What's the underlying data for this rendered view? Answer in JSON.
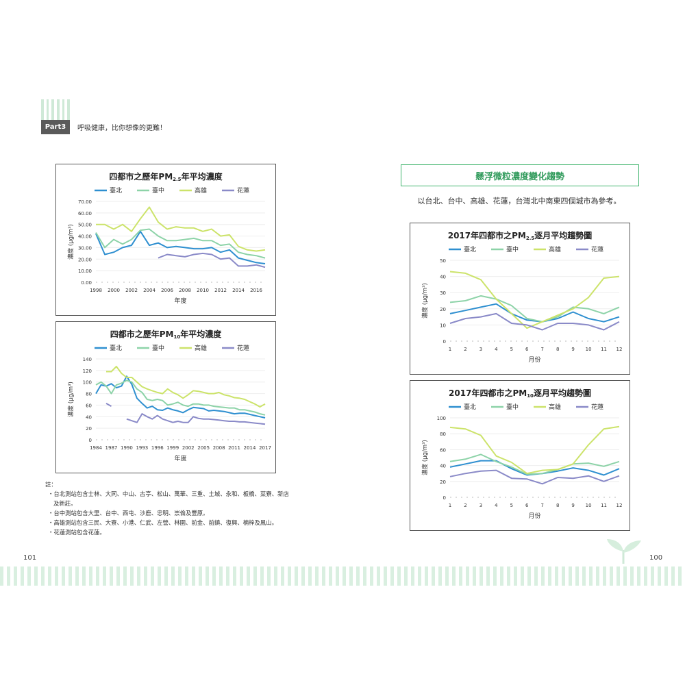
{
  "header": {
    "part_label": "Part3",
    "running_head": "呼吸健康，比你想像的更難！"
  },
  "section": {
    "banner": "懸浮微粒濃度變化趨勢",
    "intro": "以台北、台中、高雄、花蓮，台灣北中南東四個城市為參考。"
  },
  "notes": {
    "heading": "註：",
    "items": [
      "・台北測站包含士林、大同、中山、古亭、松山、萬華、三重、土城、永和、板橋、菜寮、新店及新莊。",
      "・台中測站包含大里、台中、西屯、沙鹿、忠明、崇倫及豐原。",
      "・高雄測站包含三民、大寮、小港、仁武、左營、林園、前金、前鎮、復興、楠梓及鳳山。",
      "・花蓮測站包含花蓮。"
    ]
  },
  "pages": {
    "left": "101",
    "right": "100"
  },
  "colors": {
    "taipei": "#2e8fd0",
    "taichung": "#8dd3a8",
    "kaohsiung": "#cce36a",
    "hualien": "#8a8ac8",
    "accent": "#3db36b"
  },
  "chart_data": [
    {
      "type": "line",
      "title_pre": "四都市之歷年PM",
      "title_sub": "2.5",
      "title_post": "年平均濃度",
      "xlabel": "年度",
      "ylabel": "濃度 (μg/m³)",
      "ylim": [
        0,
        70
      ],
      "yticks": [
        "0.00",
        "10.00",
        "20.00",
        "30.00",
        "40.00",
        "50.00",
        "60.00",
        "70.00"
      ],
      "x": [
        1998,
        1999,
        2000,
        2001,
        2002,
        2003,
        2004,
        2005,
        2006,
        2007,
        2008,
        2009,
        2010,
        2011,
        2012,
        2013,
        2014,
        2015,
        2016,
        2017
      ],
      "xtick_labels": [
        "1998",
        "2000",
        "2002",
        "2004",
        "2006",
        "2008",
        "2010",
        "2012",
        "2014",
        "2016"
      ],
      "series": [
        {
          "name": "臺北",
          "values": [
            42,
            24,
            26,
            30,
            32,
            44,
            32,
            34,
            30,
            31,
            30,
            29,
            29,
            30,
            26,
            28,
            21,
            19,
            17,
            16
          ]
        },
        {
          "name": "臺中",
          "values": [
            43,
            30,
            37,
            33,
            37,
            45,
            46,
            40,
            36,
            36,
            37,
            38,
            36,
            36,
            32,
            33,
            26,
            24,
            23,
            21
          ]
        },
        {
          "name": "高雄",
          "values": [
            50,
            50,
            46,
            50,
            44,
            55,
            65,
            52,
            46,
            48,
            47,
            47,
            44,
            46,
            40,
            41,
            31,
            28,
            27,
            28
          ]
        },
        {
          "name": "花蓮",
          "values": [
            null,
            null,
            null,
            null,
            null,
            null,
            null,
            21,
            24,
            23,
            22,
            24,
            25,
            24,
            20,
            21,
            14,
            14,
            15,
            13
          ]
        }
      ]
    },
    {
      "type": "line",
      "title_pre": "四都市之歷年PM",
      "title_sub": "10",
      "title_post": "年平均濃度",
      "xlabel": "年度",
      "ylabel": "濃度 (μg/m³)",
      "ylim": [
        0,
        140
      ],
      "yticks": [
        "0",
        "20",
        "40",
        "60",
        "80",
        "100",
        "120",
        "140"
      ],
      "x": [
        1984,
        1985,
        1986,
        1987,
        1988,
        1989,
        1990,
        1991,
        1992,
        1993,
        1994,
        1995,
        1996,
        1997,
        1998,
        1999,
        2000,
        2001,
        2002,
        2003,
        2004,
        2005,
        2006,
        2007,
        2008,
        2009,
        2010,
        2011,
        2012,
        2013,
        2014,
        2015,
        2016,
        2017
      ],
      "xtick_labels": [
        "1984",
        "1987",
        "1990",
        "1993",
        "1996",
        "1999",
        "2002",
        "2005",
        "2008",
        "2011",
        "2014",
        "2017"
      ],
      "series": [
        {
          "name": "臺北",
          "values": [
            80,
            95,
            93,
            97,
            90,
            93,
            110,
            96,
            72,
            63,
            55,
            58,
            52,
            51,
            55,
            52,
            50,
            47,
            52,
            56,
            55,
            54,
            50,
            51,
            50,
            49,
            47,
            45,
            46,
            46,
            44,
            42,
            40,
            38
          ]
        },
        {
          "name": "臺中",
          "values": [
            95,
            100,
            93,
            80,
            95,
            98,
            103,
            100,
            88,
            82,
            70,
            68,
            70,
            68,
            60,
            62,
            65,
            60,
            58,
            62,
            62,
            60,
            60,
            58,
            57,
            56,
            55,
            55,
            52,
            52,
            50,
            48,
            45,
            43
          ]
        },
        {
          "name": "高雄",
          "values": [
            null,
            null,
            118,
            118,
            127,
            115,
            108,
            108,
            100,
            92,
            88,
            85,
            82,
            80,
            88,
            82,
            78,
            72,
            78,
            85,
            84,
            82,
            80,
            80,
            82,
            78,
            76,
            73,
            72,
            70,
            66,
            62,
            57,
            62
          ]
        },
        {
          "name": "花蓮",
          "values": [
            null,
            null,
            63,
            58,
            null,
            null,
            36,
            33,
            30,
            45,
            40,
            36,
            42,
            36,
            33,
            30,
            32,
            30,
            30,
            40,
            37,
            36,
            36,
            35,
            34,
            33,
            32,
            32,
            31,
            31,
            30,
            29,
            28,
            27
          ]
        }
      ]
    },
    {
      "type": "line",
      "title_pre": "2017年四都市之PM",
      "title_sub": "2.5",
      "title_post": "逐月平均趨勢圖",
      "xlabel": "月份",
      "ylabel": "濃度 (μg/m³)",
      "ylim": [
        0,
        50
      ],
      "yticks": [
        "0",
        "10",
        "20",
        "30",
        "40",
        "50"
      ],
      "x": [
        1,
        2,
        3,
        4,
        5,
        6,
        7,
        8,
        9,
        10,
        11,
        12
      ],
      "xtick_labels": [
        "1",
        "2",
        "3",
        "4",
        "5",
        "6",
        "7",
        "8",
        "9",
        "10",
        "11",
        "12"
      ],
      "series": [
        {
          "name": "臺北",
          "values": [
            17,
            19,
            21,
            23,
            17,
            13,
            12,
            14,
            18,
            14,
            12,
            15
          ]
        },
        {
          "name": "臺中",
          "values": [
            24,
            25,
            28,
            26,
            22,
            14,
            12,
            15,
            21,
            20,
            17,
            21
          ]
        },
        {
          "name": "高雄",
          "values": [
            43,
            42,
            38,
            26,
            17,
            8,
            12,
            16,
            20,
            27,
            39,
            40
          ]
        },
        {
          "name": "花蓮",
          "values": [
            11,
            14,
            15,
            17,
            11,
            10,
            7,
            11,
            11,
            10,
            7,
            12
          ]
        }
      ]
    },
    {
      "type": "line",
      "title_pre": "2017年四都市之PM",
      "title_sub": "10",
      "title_post": "逐月平均趨勢圖",
      "xlabel": "月份",
      "ylabel": "濃度 (μg/m³)",
      "ylim": [
        0,
        100
      ],
      "yticks": [
        "0",
        "20",
        "40",
        "60",
        "80",
        "100"
      ],
      "x": [
        1,
        2,
        3,
        4,
        5,
        6,
        7,
        8,
        9,
        10,
        11,
        12
      ],
      "xtick_labels": [
        "1",
        "2",
        "3",
        "4",
        "5",
        "6",
        "7",
        "8",
        "9",
        "10",
        "11",
        "12"
      ],
      "series": [
        {
          "name": "臺北",
          "values": [
            38,
            42,
            46,
            46,
            36,
            28,
            30,
            33,
            37,
            34,
            28,
            36
          ]
        },
        {
          "name": "臺中",
          "values": [
            45,
            48,
            54,
            45,
            38,
            29,
            30,
            35,
            42,
            43,
            39,
            45
          ]
        },
        {
          "name": "高雄",
          "values": [
            88,
            86,
            78,
            52,
            44,
            30,
            34,
            35,
            42,
            66,
            86,
            89
          ]
        },
        {
          "name": "花蓮",
          "values": [
            26,
            30,
            33,
            34,
            24,
            23,
            17,
            25,
            24,
            27,
            20,
            27
          ]
        }
      ]
    }
  ]
}
